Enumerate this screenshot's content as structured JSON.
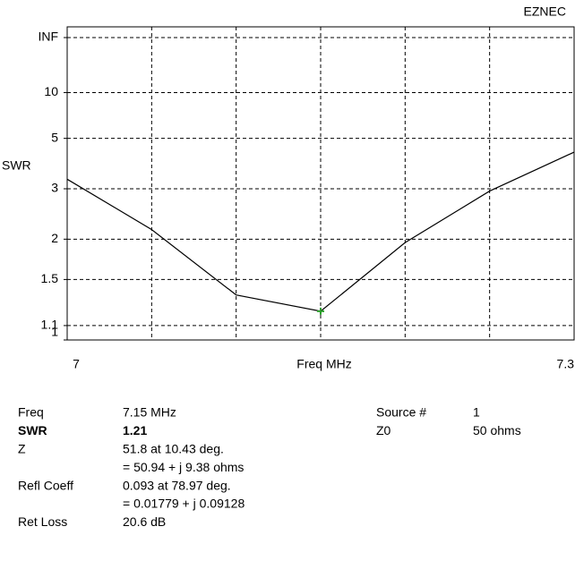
{
  "app": "EZNEC",
  "chart_data": {
    "type": "line",
    "xlabel": "Freq MHz",
    "ylabel": "SWR",
    "x": [
      7,
      7.05,
      7.1,
      7.15,
      7.2,
      7.25,
      7.3
    ],
    "values": [
      3.27,
      2.15,
      1.35,
      1.21,
      1.95,
      2.94,
      4.28
    ],
    "color": "#000000",
    "marker": {
      "x": 7.15,
      "color": "#2ca02c"
    },
    "xlim": [
      7,
      7.3
    ],
    "xticks": [
      7,
      7.3
    ],
    "xgrid": [
      7.05,
      7.1,
      7.15,
      7.2,
      7.25
    ],
    "ylim": [
      1,
      null
    ],
    "yscale": "reflection",
    "yticks": [
      {
        "value": null,
        "label": "INF"
      },
      10,
      5,
      3,
      2,
      1.5,
      1.1,
      1
    ],
    "grid": true
  },
  "readout": {
    "left": [
      {
        "label": "Freq",
        "lines": [
          "7.15 MHz"
        ]
      },
      {
        "label": "SWR",
        "lines": [
          "1.21"
        ],
        "bold": true
      },
      {
        "label": "Z",
        "lines": [
          "51.8 at 10.43 deg.",
          "= 50.94 + j 9.38 ohms"
        ]
      },
      {
        "label": "Refl Coeff",
        "lines": [
          "0.093 at 78.97 deg.",
          "= 0.01779 + j 0.09128"
        ]
      },
      {
        "label": "Ret Loss",
        "lines": [
          "20.6 dB"
        ]
      }
    ],
    "right": [
      {
        "label": "Source #",
        "lines": [
          "1"
        ]
      },
      {
        "label": "Z0",
        "lines": [
          "50 ohms"
        ]
      }
    ]
  }
}
